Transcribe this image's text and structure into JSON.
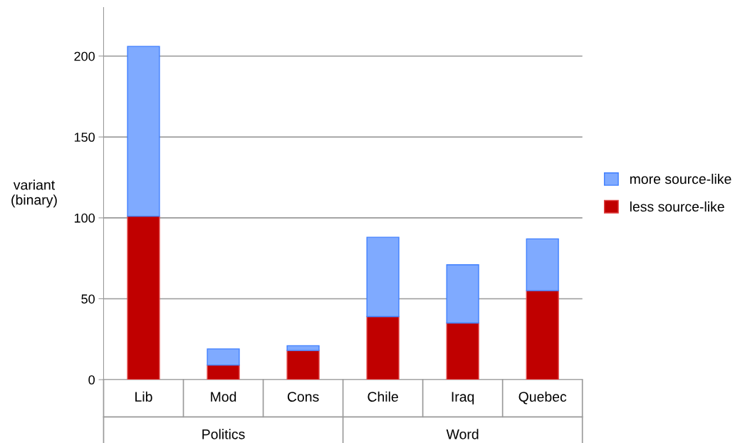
{
  "chart_data": {
    "type": "bar",
    "stacked": true,
    "ylabel": "variant\n(binary)",
    "categories": [
      "Lib",
      "Mod",
      "Cons",
      "Chile",
      "Iraq",
      "Quebec"
    ],
    "series": [
      {
        "name": "less source-like",
        "color": "#c00000",
        "values": [
          101,
          9,
          18,
          39,
          35,
          55
        ]
      },
      {
        "name": "more source-like",
        "color": "#7faaff",
        "values": [
          105,
          10,
          3,
          49,
          36,
          32
        ]
      }
    ],
    "annotations": [
      "Politics",
      "Word"
    ],
    "ylim": [
      0,
      230
    ],
    "yticks": [
      0,
      50,
      100,
      150,
      200
    ],
    "grid": "y",
    "legend": "right"
  }
}
